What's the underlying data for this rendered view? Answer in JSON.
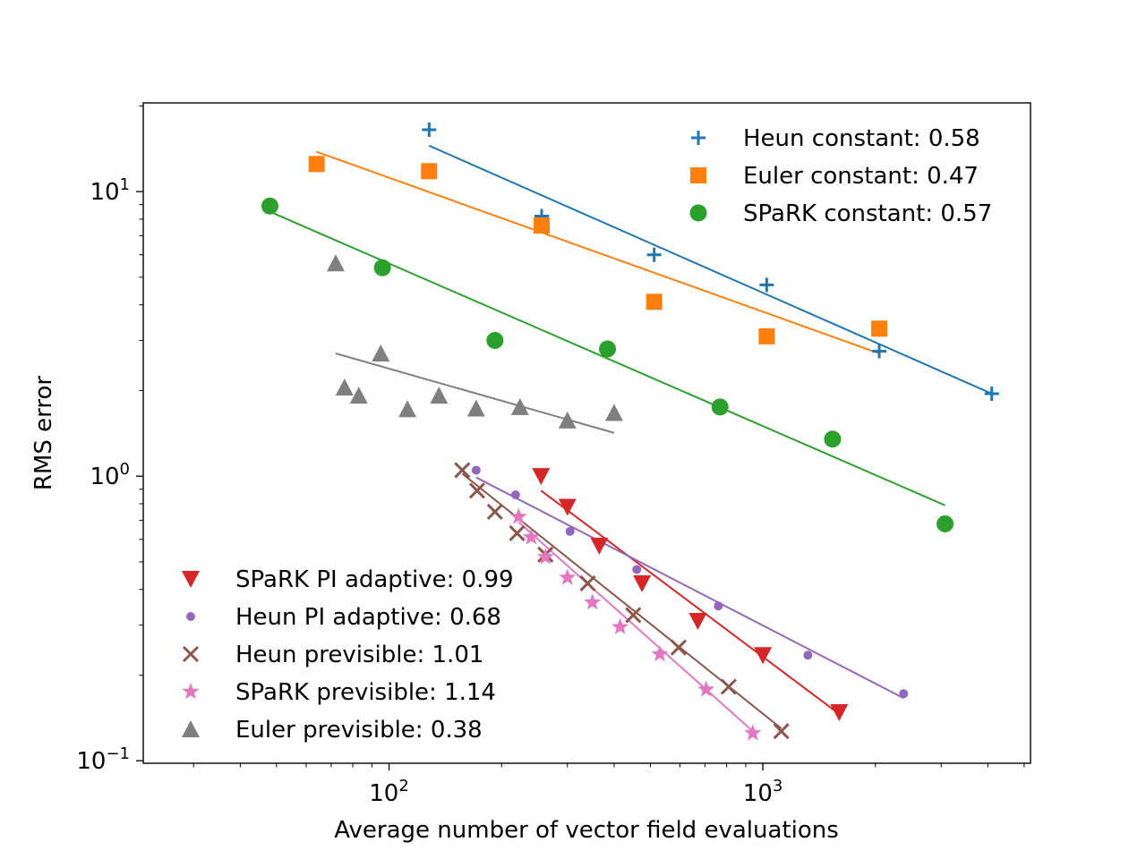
{
  "chart_data": {
    "type": "scatter",
    "title": "",
    "xlabel": "Average number of vector field evaluations",
    "ylabel": "RMS error",
    "xscale": "log",
    "yscale": "log",
    "xlim": [
      22,
      5200
    ],
    "ylim": [
      0.098,
      20.5
    ],
    "x_ticks": [
      {
        "value": 100,
        "base": "10",
        "exp": "2"
      },
      {
        "value": 1000,
        "base": "10",
        "exp": "3"
      }
    ],
    "y_ticks": [
      {
        "value": 0.1,
        "base": "10",
        "exp": "−1"
      },
      {
        "value": 1,
        "base": "10",
        "exp": "0"
      },
      {
        "value": 10,
        "base": "10",
        "exp": "1"
      }
    ],
    "grid": false,
    "legends": [
      {
        "placement": "top-right",
        "entries": [
          "Heun constant: 0.58",
          "Euler constant: 0.47",
          "SPaRK constant: 0.57"
        ]
      },
      {
        "placement": "bottom-left",
        "entries": [
          "SPaRK PI adaptive: 0.99",
          "Heun PI adaptive: 0.68",
          "Heun previsible: 1.01",
          "SPaRK previsible: 1.14",
          "Euler previsible: 0.38"
        ]
      }
    ],
    "series": [
      {
        "name": "Heun constant: 0.58",
        "color": "#1f77b4",
        "marker": "plus",
        "x": [
          128,
          256,
          512,
          1024,
          2048,
          4096
        ],
        "y": [
          16.5,
          8.2,
          6.0,
          4.7,
          2.75,
          1.95
        ],
        "fit": {
          "x": [
            128,
            4096
          ],
          "y": [
            14.5,
            1.95
          ]
        }
      },
      {
        "name": "Euler constant: 0.47",
        "color": "#ff7f0e",
        "marker": "square",
        "x": [
          64,
          128,
          256,
          512,
          1024,
          2048
        ],
        "y": [
          12.5,
          11.8,
          7.6,
          4.1,
          3.1,
          3.3
        ],
        "fit": {
          "x": [
            64,
            2048
          ],
          "y": [
            13.8,
            2.7
          ]
        }
      },
      {
        "name": "SPaRK constant: 0.57",
        "color": "#2ca02c",
        "marker": "circle",
        "x": [
          48,
          96,
          192,
          384,
          768,
          1536,
          3072
        ],
        "y": [
          8.9,
          5.4,
          3.0,
          2.8,
          1.75,
          1.35,
          0.68
        ],
        "fit": {
          "x": [
            48,
            3072
          ],
          "y": [
            8.5,
            0.79
          ]
        }
      },
      {
        "name": "SPaRK PI adaptive: 0.99",
        "color": "#d62728",
        "marker": "triangle-down",
        "x": [
          255,
          300,
          365,
          475,
          670,
          1000,
          1600
        ],
        "y": [
          1.0,
          0.78,
          0.57,
          0.42,
          0.31,
          0.235,
          0.148
        ],
        "fit": {
          "x": [
            255,
            1600
          ],
          "y": [
            0.89,
            0.146
          ]
        }
      },
      {
        "name": "Heun PI adaptive: 0.68",
        "color": "#9467bd",
        "marker": "dot",
        "x": [
          171,
          218,
          305,
          460,
          760,
          1320,
          2380
        ],
        "y": [
          1.05,
          0.86,
          0.64,
          0.47,
          0.35,
          0.235,
          0.172
        ],
        "fit": {
          "x": [
            171,
            2380
          ],
          "y": [
            0.99,
            0.166
          ]
        }
      },
      {
        "name": "Heun previsible: 1.01",
        "color": "#8c564b",
        "marker": "x",
        "x": [
          157,
          172,
          192,
          220,
          262,
          340,
          450,
          595,
          810,
          1120
        ],
        "y": [
          1.05,
          0.89,
          0.75,
          0.63,
          0.53,
          0.42,
          0.325,
          0.25,
          0.182,
          0.127
        ],
        "fit": {
          "x": [
            157,
            1120
          ],
          "y": [
            1.02,
            0.13
          ]
        }
      },
      {
        "name": "SPaRK previsible: 1.14",
        "color": "#e377c2",
        "marker": "star",
        "x": [
          222,
          240,
          262,
          300,
          350,
          415,
          530,
          705,
          940
        ],
        "y": [
          0.72,
          0.61,
          0.52,
          0.44,
          0.36,
          0.295,
          0.237,
          0.178,
          0.125
        ],
        "fit": {
          "x": [
            222,
            940
          ],
          "y": [
            0.69,
            0.127
          ]
        }
      },
      {
        "name": "Euler previsible: 0.38",
        "color": "#7f7f7f",
        "marker": "triangle-up",
        "x": [
          72,
          76,
          83,
          95,
          112,
          136,
          171,
          224,
          300,
          400
        ],
        "y": [
          5.6,
          2.05,
          1.92,
          2.7,
          1.72,
          1.92,
          1.73,
          1.75,
          1.57,
          1.67
        ],
        "fit": {
          "x": [
            72,
            400
          ],
          "y": [
            2.7,
            1.42
          ]
        }
      }
    ]
  }
}
